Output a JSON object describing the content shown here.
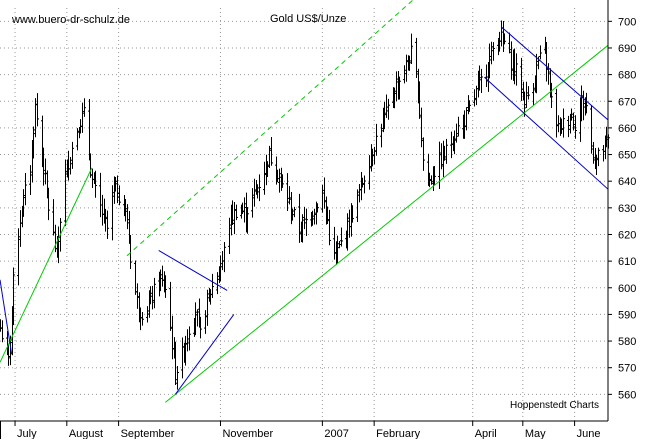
{
  "chart_data": {
    "type": "bar",
    "subtype": "ohlc",
    "title": "Gold US$/Unze",
    "watermark": "www.buero-dr-schulz.de",
    "source": "Hoppenstedt Charts",
    "ylim": [
      550,
      705
    ],
    "y_ticks": [
      560,
      570,
      580,
      590,
      600,
      610,
      620,
      630,
      640,
      650,
      660,
      670,
      680,
      690,
      700
    ],
    "y_axis_position": "right",
    "grid": true,
    "x_range": [
      "2006-06-22",
      "2007-06-21"
    ],
    "x_tick_labels": [
      {
        "label": "July",
        "date": "2006-07-01"
      },
      {
        "label": "August",
        "date": "2006-08-01"
      },
      {
        "label": "September",
        "date": "2006-09-01"
      },
      {
        "label": "November",
        "date": "2006-11-01"
      },
      {
        "label": "2007",
        "date": "2007-01-01"
      },
      {
        "label": "February",
        "date": "2007-02-01"
      },
      {
        "label": "April",
        "date": "2007-04-01"
      },
      {
        "label": "May",
        "date": "2007-05-01"
      },
      {
        "label": "June",
        "date": "2007-06-01"
      }
    ],
    "price_path": [
      [
        "2006-06-22",
        585
      ],
      [
        "2006-06-27",
        572
      ],
      [
        "2006-07-01",
        612
      ],
      [
        "2006-07-05",
        630
      ],
      [
        "2006-07-10",
        645
      ],
      [
        "2006-07-13",
        668
      ],
      [
        "2006-07-18",
        645
      ],
      [
        "2006-07-21",
        630
      ],
      [
        "2006-07-26",
        612
      ],
      [
        "2006-07-30",
        640
      ],
      [
        "2006-08-03",
        650
      ],
      [
        "2006-08-08",
        662
      ],
      [
        "2006-08-11",
        665
      ],
      [
        "2006-08-16",
        640
      ],
      [
        "2006-08-21",
        630
      ],
      [
        "2006-08-25",
        622
      ],
      [
        "2006-08-29",
        638
      ],
      [
        "2006-09-02",
        634
      ],
      [
        "2006-09-06",
        625
      ],
      [
        "2006-09-09",
        605
      ],
      [
        "2006-09-13",
        592
      ],
      [
        "2006-09-17",
        590
      ],
      [
        "2006-09-21",
        597
      ],
      [
        "2006-09-25",
        603
      ],
      [
        "2006-09-29",
        600
      ],
      [
        "2006-10-02",
        585
      ],
      [
        "2006-10-05",
        568
      ],
      [
        "2006-10-09",
        575
      ],
      [
        "2006-10-13",
        585
      ],
      [
        "2006-10-17",
        592
      ],
      [
        "2006-10-20",
        582
      ],
      [
        "2006-10-24",
        595
      ],
      [
        "2006-10-28",
        602
      ],
      [
        "2006-11-02",
        610
      ],
      [
        "2006-11-06",
        625
      ],
      [
        "2006-11-11",
        630
      ],
      [
        "2006-11-16",
        628
      ],
      [
        "2006-11-21",
        635
      ],
      [
        "2006-11-26",
        642
      ],
      [
        "2006-11-30",
        650
      ],
      [
        "2006-12-04",
        645
      ],
      [
        "2006-12-08",
        638
      ],
      [
        "2006-12-13",
        630
      ],
      [
        "2006-12-18",
        622
      ],
      [
        "2006-12-22",
        625
      ],
      [
        "2006-12-27",
        630
      ],
      [
        "2007-01-01",
        635
      ],
      [
        "2007-01-04",
        625
      ],
      [
        "2007-01-07",
        610
      ],
      [
        "2007-01-11",
        615
      ],
      [
        "2007-01-15",
        622
      ],
      [
        "2007-01-20",
        630
      ],
      [
        "2007-01-25",
        640
      ],
      [
        "2007-01-30",
        650
      ],
      [
        "2007-02-03",
        658
      ],
      [
        "2007-02-08",
        665
      ],
      [
        "2007-02-13",
        675
      ],
      [
        "2007-02-18",
        680
      ],
      [
        "2007-02-23",
        688
      ],
      [
        "2007-02-27",
        675
      ],
      [
        "2007-03-02",
        648
      ],
      [
        "2007-03-06",
        640
      ],
      [
        "2007-03-10",
        645
      ],
      [
        "2007-03-15",
        650
      ],
      [
        "2007-03-19",
        655
      ],
      [
        "2007-03-23",
        660
      ],
      [
        "2007-03-27",
        663
      ],
      [
        "2007-03-31",
        668
      ],
      [
        "2007-04-04",
        675
      ],
      [
        "2007-04-08",
        680
      ],
      [
        "2007-04-12",
        688
      ],
      [
        "2007-04-16",
        695
      ],
      [
        "2007-04-20",
        692
      ],
      [
        "2007-04-24",
        685
      ],
      [
        "2007-04-28",
        680
      ],
      [
        "2007-05-02",
        670
      ],
      [
        "2007-05-06",
        675
      ],
      [
        "2007-05-10",
        685
      ],
      [
        "2007-05-14",
        688
      ],
      [
        "2007-05-18",
        670
      ],
      [
        "2007-05-22",
        660
      ],
      [
        "2007-05-26",
        662
      ],
      [
        "2007-05-30",
        665
      ],
      [
        "2007-06-02",
        660
      ],
      [
        "2007-06-05",
        670
      ],
      [
        "2007-06-08",
        668
      ],
      [
        "2007-06-11",
        652
      ],
      [
        "2007-06-14",
        648
      ],
      [
        "2007-06-18",
        652
      ],
      [
        "2007-06-21",
        655
      ]
    ],
    "trendlines": [
      {
        "color": "#00cc00",
        "style": "solid",
        "points": [
          [
            "2006-06-22",
            572
          ],
          [
            "2006-08-16",
            645
          ]
        ]
      },
      {
        "color": "#00cc00",
        "style": "solid",
        "points": [
          [
            "2006-09-29",
            557
          ],
          [
            "2007-06-21",
            691
          ]
        ]
      },
      {
        "color": "#00cc00",
        "style": "dashed",
        "points": [
          [
            "2006-09-06",
            612
          ],
          [
            "2007-02-26",
            709
          ]
        ]
      },
      {
        "color": "#0000cc",
        "style": "solid",
        "points": [
          [
            "2006-06-22",
            603
          ],
          [
            "2006-06-29",
            575
          ]
        ]
      },
      {
        "color": "#0000cc",
        "style": "solid",
        "points": [
          [
            "2006-09-25",
            614
          ],
          [
            "2006-11-05",
            599
          ]
        ]
      },
      {
        "color": "#0000cc",
        "style": "solid",
        "points": [
          [
            "2006-10-05",
            560
          ],
          [
            "2006-11-09",
            590
          ]
        ]
      },
      {
        "color": "#0000cc",
        "style": "solid",
        "points": [
          [
            "2007-04-18",
            698
          ],
          [
            "2007-06-21",
            663
          ]
        ]
      },
      {
        "color": "#0000cc",
        "style": "solid",
        "points": [
          [
            "2007-04-08",
            679
          ],
          [
            "2007-06-21",
            637
          ]
        ]
      }
    ],
    "colors": {
      "price": "#000000",
      "grid": "#999999",
      "support": "#00cc00",
      "channel": "#0000cc"
    }
  }
}
